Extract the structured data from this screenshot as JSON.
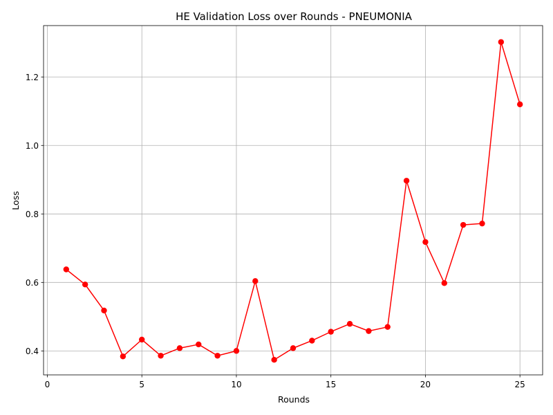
{
  "chart_data": {
    "type": "line",
    "title": "HE Validation Loss over Rounds - PNEUMONIA",
    "xlabel": "Rounds",
    "ylabel": "Loss",
    "xlim": [
      -0.2,
      26.2
    ],
    "ylim": [
      0.33,
      1.35
    ],
    "xticks": [
      0,
      5,
      10,
      15,
      20,
      25
    ],
    "xtick_labels": [
      "0",
      "5",
      "10",
      "15",
      "20",
      "25"
    ],
    "yticks": [
      0.4,
      0.6,
      0.8,
      1.0,
      1.2
    ],
    "ytick_labels": [
      "0.4",
      "0.6",
      "0.8",
      "1.0",
      "1.2"
    ],
    "grid": true,
    "series": [
      {
        "color": "#ff0000",
        "marker": "circle",
        "x": [
          1,
          2,
          3,
          4,
          5,
          6,
          7,
          8,
          9,
          10,
          11,
          12,
          13,
          14,
          15,
          16,
          17,
          18,
          19,
          20,
          21,
          22,
          23,
          24,
          25
        ],
        "y": [
          0.638,
          0.594,
          0.518,
          0.384,
          0.433,
          0.386,
          0.408,
          0.419,
          0.386,
          0.4,
          0.604,
          0.374,
          0.408,
          0.43,
          0.456,
          0.479,
          0.458,
          0.47,
          0.897,
          0.718,
          0.598,
          0.768,
          0.772,
          1.302,
          1.12
        ]
      }
    ]
  }
}
